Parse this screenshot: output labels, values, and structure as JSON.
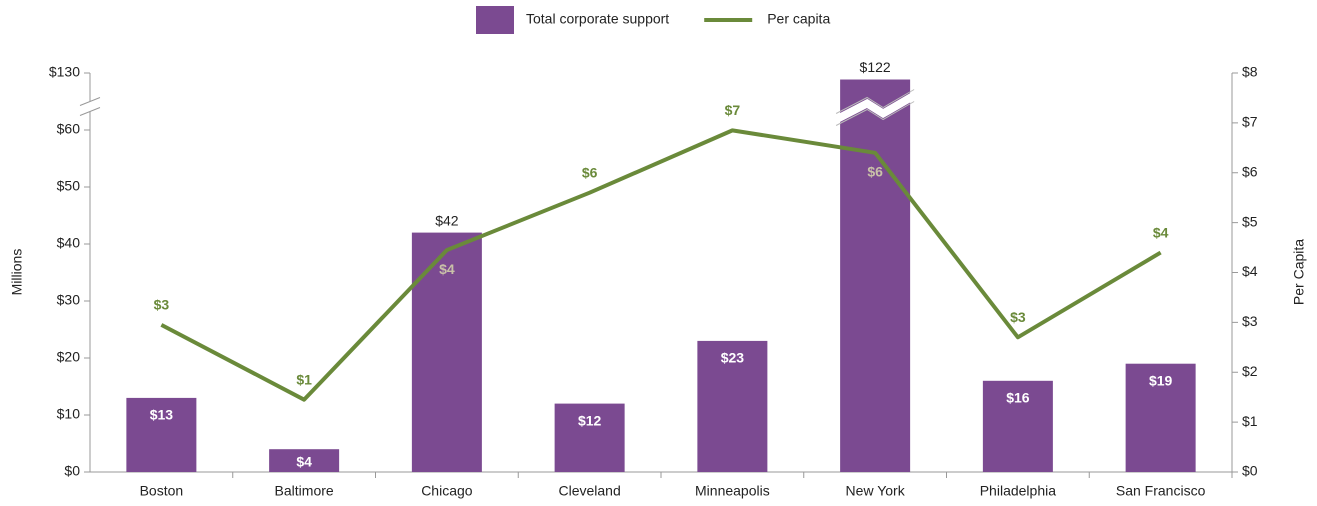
{
  "chart_data": {
    "type": "bar_line",
    "categories": [
      "Boston",
      "Baltimore",
      "Chicago",
      "Cleveland",
      "Minneapolis",
      "New York",
      "Philadelphia",
      "San Francisco"
    ],
    "series": [
      {
        "name": "Total corporate support",
        "color": "#7b4a91",
        "type": "bar",
        "values": [
          13,
          4,
          42,
          12,
          23,
          122,
          16,
          19
        ],
        "value_labels": [
          "$13",
          "$4",
          "$42",
          "$12",
          "$23",
          "$122",
          "$16",
          "$19"
        ]
      },
      {
        "name": "Per capita",
        "color": "#6a8a3a",
        "type": "line",
        "axis": "y2",
        "values": [
          2.95,
          1.45,
          4.45,
          5.6,
          6.85,
          6.4,
          2.7,
          4.4
        ],
        "value_labels": [
          "$3",
          "$1",
          "$4",
          "$6",
          "$7",
          "$6",
          "$3",
          "$4"
        ]
      }
    ],
    "y_label": "Millions",
    "y2_label": "Per Capita",
    "ylim": [
      0,
      130
    ],
    "y_break": true,
    "yticks": [
      {
        "value": 0,
        "label": "$0"
      },
      {
        "value": 10,
        "label": "$10"
      },
      {
        "value": 20,
        "label": "$20"
      },
      {
        "value": 30,
        "label": "$30"
      },
      {
        "value": 40,
        "label": "$40"
      },
      {
        "value": 50,
        "label": "$50"
      },
      {
        "value": 60,
        "label": "$60"
      },
      {
        "value": 130,
        "label": "$130"
      }
    ],
    "y2lim": [
      0,
      8
    ],
    "y2ticks": [
      {
        "value": 0,
        "label": "$0"
      },
      {
        "value": 1,
        "label": "$1"
      },
      {
        "value": 2,
        "label": "$2"
      },
      {
        "value": 3,
        "label": "$3"
      },
      {
        "value": 4,
        "label": "$4"
      },
      {
        "value": 5,
        "label": "$5"
      },
      {
        "value": 6,
        "label": "$6"
      },
      {
        "value": 7,
        "label": "$7"
      },
      {
        "value": 8,
        "label": "$8"
      }
    ],
    "legend": "top",
    "grid": false
  }
}
